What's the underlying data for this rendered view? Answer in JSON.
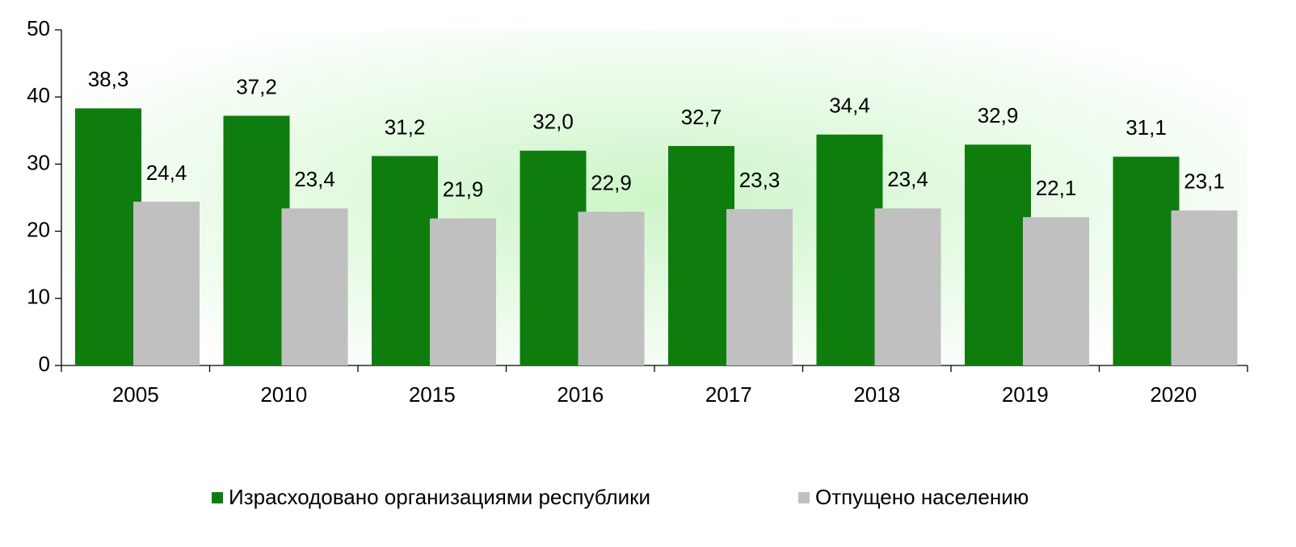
{
  "chart_data": {
    "type": "bar",
    "categories": [
      "2005",
      "2010",
      "2015",
      "2016",
      "2017",
      "2018",
      "2019",
      "2020"
    ],
    "series": [
      {
        "name": "Израсходовано организациями республики",
        "color": "#0e7d0e",
        "values": [
          38.3,
          37.2,
          31.2,
          32.0,
          32.7,
          34.4,
          32.9,
          31.1
        ],
        "value_labels": [
          "38,3",
          "37,2",
          "31,2",
          "32,0",
          "32,7",
          "34,4",
          "32,9",
          "31,1"
        ]
      },
      {
        "name": "Отпущено населению",
        "color": "#c0c0c0",
        "values": [
          24.4,
          23.4,
          21.9,
          22.9,
          23.3,
          23.4,
          22.1,
          23.1
        ],
        "value_labels": [
          "24,4",
          "23,4",
          "21,9",
          "22,9",
          "23,3",
          "23,4",
          "22,1",
          "23,1"
        ]
      }
    ],
    "ylim": [
      0,
      50
    ],
    "yticks": [
      0,
      10,
      20,
      30,
      40,
      50
    ],
    "legend": "bottom"
  }
}
